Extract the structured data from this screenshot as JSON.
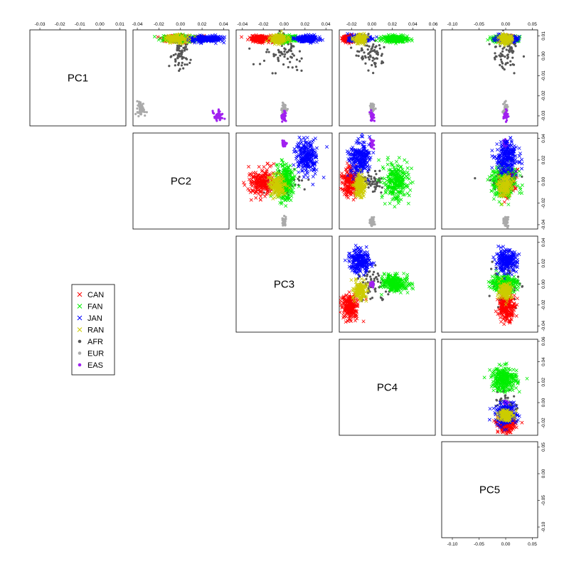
{
  "chart_data": {
    "type": "scatter",
    "subtype": "pairs-matrix",
    "variables": [
      "PC1",
      "PC2",
      "PC3",
      "PC4",
      "PC5"
    ],
    "axis_ticks": {
      "PC1": [
        "-0.03",
        "-0.02",
        "-0.01",
        "0.00",
        "0.01"
      ],
      "PC2": [
        "-0.04",
        "-0.02",
        "0.00",
        "0.02",
        "0.04"
      ],
      "PC3": [
        "-0.04",
        "-0.02",
        "0.00",
        "0.02",
        "0.04"
      ],
      "PC4": [
        "-0.02",
        "0.00",
        "0.02",
        "0.04",
        "0.06"
      ],
      "PC5": [
        "-0.10",
        "-0.05",
        "0.00",
        "0.05"
      ]
    },
    "axis_tick_values": {
      "PC1": [
        -0.03,
        -0.02,
        -0.01,
        0.0,
        0.01
      ],
      "PC2": [
        -0.04,
        -0.02,
        0.0,
        0.02,
        0.04
      ],
      "PC3": [
        -0.04,
        -0.02,
        0.0,
        0.02,
        0.04
      ],
      "PC4": [
        -0.02,
        0.0,
        0.02,
        0.04,
        0.06
      ],
      "PC5": [
        -0.1,
        -0.05,
        0.0,
        0.05
      ]
    },
    "axis_ranges": {
      "PC1": [
        -0.035,
        0.013
      ],
      "PC2": [
        -0.044,
        0.045
      ],
      "PC3": [
        -0.046,
        0.046
      ],
      "PC4": [
        -0.032,
        0.062
      ],
      "PC5": [
        -0.12,
        0.06
      ]
    },
    "legend": {
      "position": "left",
      "entries": [
        {
          "label": "CAN",
          "marker": "x",
          "color": "#ff0000"
        },
        {
          "label": "FAN",
          "marker": "x",
          "color": "#00ee00"
        },
        {
          "label": "JAN",
          "marker": "x",
          "color": "#0000ff"
        },
        {
          "label": "RAN",
          "marker": "x",
          "color": "#cccc00"
        },
        {
          "label": "AFR",
          "marker": "dot",
          "color": "#555555"
        },
        {
          "label": "EUR",
          "marker": "dot",
          "color": "#aaaaaa"
        },
        {
          "label": "EAS",
          "marker": "dot",
          "color": "#a020f0"
        }
      ]
    },
    "group_centroids": {
      "CAN": {
        "PC1": 0.0085,
        "PC2": -0.001,
        "PC3": -0.022,
        "PC4": -0.021,
        "PC5": 0.002
      },
      "FAN": {
        "PC1": 0.0085,
        "PC2": 0.0,
        "PC3": 0.001,
        "PC4": 0.023,
        "PC5": -0.003
      },
      "JAN": {
        "PC1": 0.0085,
        "PC2": 0.022,
        "PC3": 0.022,
        "PC4": -0.012,
        "PC5": 0.001
      },
      "RAN": {
        "PC1": 0.0085,
        "PC2": -0.004,
        "PC3": -0.006,
        "PC4": -0.012,
        "PC5": 0.0
      },
      "AFR": {
        "PC1": 0.0,
        "PC2": 0.0,
        "PC3": 0.0,
        "PC4": 0.0,
        "PC5": 0.0
      },
      "EUR": {
        "PC1": -0.0265,
        "PC2": -0.037,
        "PC3": 0.0,
        "PC4": 0.0,
        "PC5": 0.0
      },
      "EAS": {
        "PC1": -0.03,
        "PC2": 0.035,
        "PC3": 0.0,
        "PC4": 0.0,
        "PC5": 0.0
      }
    }
  }
}
